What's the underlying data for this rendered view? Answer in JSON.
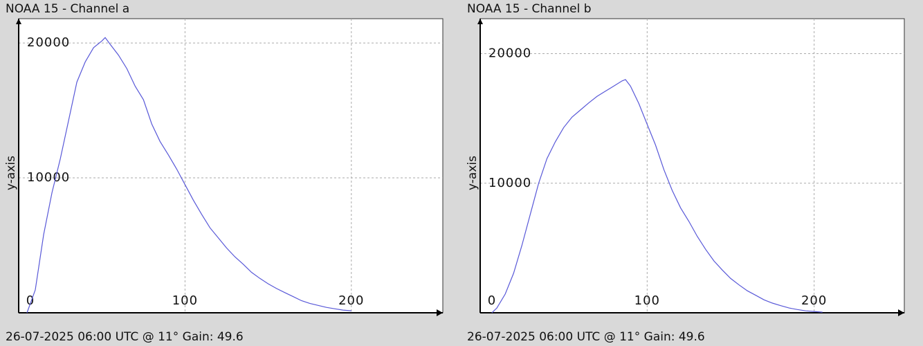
{
  "chart_data": [
    {
      "type": "line",
      "title": "NOAA 15 - Channel a",
      "y_label": "y-axis",
      "footer": "26-07-2025 06:00 UTC @ 11° Gain: 49.6",
      "color": "#5858d8",
      "x": [
        5,
        10,
        15,
        20,
        25,
        30,
        35,
        40,
        45,
        50,
        52,
        55,
        60,
        65,
        70,
        75,
        80,
        85,
        90,
        95,
        100,
        105,
        110,
        115,
        120,
        125,
        130,
        135,
        140,
        145,
        150,
        155,
        160,
        165,
        170,
        175,
        180,
        185,
        190,
        195,
        200
      ],
      "values": [
        0,
        1700,
        5800,
        8900,
        11400,
        14250,
        17100,
        18600,
        19650,
        20150,
        20400,
        19900,
        19100,
        18100,
        16800,
        15800,
        14000,
        12700,
        11700,
        10650,
        9500,
        8350,
        7300,
        6300,
        5550,
        4800,
        4150,
        3600,
        3000,
        2550,
        2150,
        1800,
        1500,
        1200,
        900,
        700,
        550,
        400,
        300,
        200,
        150
      ],
      "xlim": [
        0,
        255
      ],
      "xticks": [
        0,
        100,
        200
      ],
      "ylim": [
        0,
        21800
      ],
      "yticks": [
        10000,
        20000
      ],
      "grid": true
    },
    {
      "type": "line",
      "title": "NOAA 15 - Channel b",
      "y_label": "y-axis",
      "footer": "26-07-2025 06:00 UTC @ 11° Gain: 49.6",
      "color": "#5858d8",
      "x": [
        7,
        10,
        15,
        20,
        25,
        30,
        35,
        40,
        45,
        50,
        55,
        60,
        65,
        70,
        75,
        80,
        85,
        87,
        90,
        95,
        100,
        105,
        110,
        115,
        120,
        125,
        130,
        135,
        140,
        145,
        150,
        155,
        160,
        165,
        170,
        175,
        180,
        185,
        190,
        195,
        200,
        205
      ],
      "values": [
        0,
        370,
        1450,
        3050,
        5200,
        7600,
        10000,
        11900,
        13200,
        14300,
        15100,
        15650,
        16200,
        16700,
        17100,
        17500,
        17900,
        18000,
        17500,
        16150,
        14550,
        12950,
        11050,
        9450,
        8100,
        7050,
        5900,
        4900,
        4000,
        3300,
        2650,
        2150,
        1700,
        1350,
        1000,
        750,
        550,
        370,
        250,
        150,
        100,
        50
      ],
      "xlim": [
        0,
        254
      ],
      "xticks": [
        0,
        100,
        200
      ],
      "ylim": [
        0,
        22700
      ],
      "yticks": [
        10000,
        20000
      ],
      "grid": true
    }
  ]
}
